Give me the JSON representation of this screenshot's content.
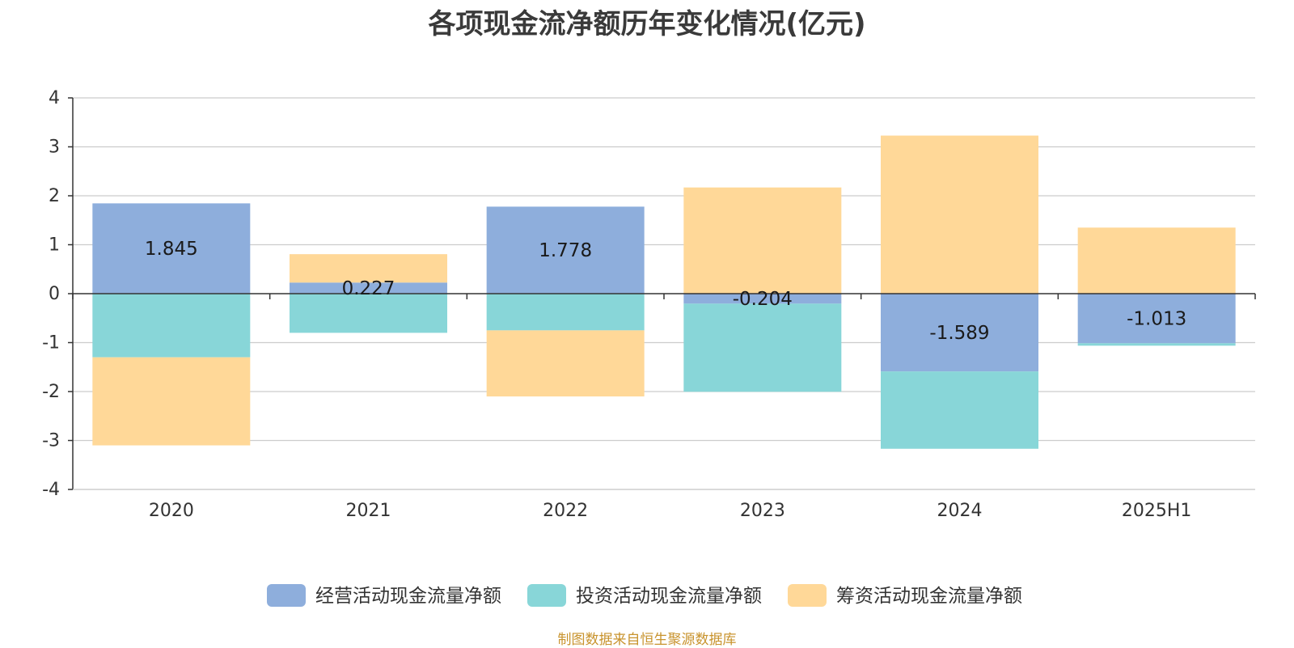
{
  "chart_data": {
    "type": "bar",
    "stacked": true,
    "title": "各项现金流净额历年变化情况(亿元)",
    "xlabel": "",
    "ylabel": "",
    "ylim": [
      -4,
      4
    ],
    "yticks": [
      "4",
      "3",
      "2",
      "1",
      "0",
      "-1",
      "-2",
      "-3",
      "-4"
    ],
    "categories": [
      "2020",
      "2021",
      "2022",
      "2023",
      "2024",
      "2025H1"
    ],
    "series": [
      {
        "name": "经营活动现金流量净额",
        "color": "#8eaedc",
        "values": [
          1.845,
          0.227,
          1.778,
          -0.204,
          -1.589,
          -1.013
        ]
      },
      {
        "name": "投资活动现金流量净额",
        "color": "#88d6d8",
        "values": [
          -1.3,
          -0.8,
          -0.75,
          -1.8,
          -1.58,
          -0.05
        ]
      },
      {
        "name": "筹资活动现金流量净额",
        "color": "#ffd898",
        "values": [
          -1.8,
          0.58,
          -1.35,
          2.17,
          3.23,
          1.35
        ]
      }
    ],
    "data_labels": [
      "1.845",
      "0.227",
      "1.778",
      "-0.204",
      "-1.589",
      "-1.013"
    ],
    "legend_position": "bottom"
  },
  "source": "制图数据来自恒生聚源数据库"
}
